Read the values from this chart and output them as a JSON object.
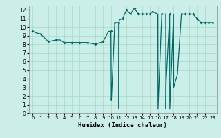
{
  "xlabel": "Humidex (Indice chaleur)",
  "bg_color": "#cceee8",
  "grid_color": "#aaddcc",
  "line_color": "#006868",
  "xlim": [
    -0.5,
    23.5
  ],
  "ylim": [
    0,
    12.5
  ],
  "xticks": [
    0,
    1,
    2,
    3,
    4,
    5,
    6,
    7,
    8,
    9,
    10,
    11,
    12,
    13,
    14,
    15,
    16,
    17,
    18,
    19,
    20,
    21,
    22,
    23
  ],
  "yticks": [
    0,
    1,
    2,
    3,
    4,
    5,
    6,
    7,
    8,
    9,
    10,
    11,
    12
  ],
  "x": [
    0,
    0.5,
    1,
    2,
    3,
    3.5,
    4,
    5,
    6,
    7,
    8,
    9,
    9.7,
    10.0,
    10.02,
    10.05,
    10.08,
    10.5,
    11.0,
    11.02,
    11.05,
    11.5,
    12.0,
    12.5,
    13.0,
    13.5,
    14.0,
    14.5,
    15.0,
    15.3,
    16.0,
    16.02,
    16.5,
    17.0,
    17.02,
    17.05,
    17.5,
    17.52,
    18.0,
    18.02,
    18.5,
    19.0,
    19.5,
    20.0,
    20.5,
    21.0,
    21.5,
    22.0,
    22.5,
    23.0
  ],
  "y": [
    9.5,
    9.3,
    9.2,
    8.3,
    8.5,
    8.5,
    8.2,
    8.2,
    8.2,
    8.2,
    8.0,
    8.3,
    9.5,
    9.5,
    7.5,
    1.5,
    1.8,
    10.5,
    10.5,
    0.5,
    10.8,
    11.0,
    12.0,
    11.5,
    12.2,
    11.5,
    11.5,
    11.5,
    11.5,
    11.8,
    11.5,
    0.5,
    11.5,
    11.5,
    0.5,
    3.5,
    11.5,
    0.5,
    11.5,
    3.0,
    4.5,
    11.5,
    11.5,
    11.5,
    11.5,
    11.0,
    10.5,
    10.5,
    10.5,
    10.5
  ],
  "marker_x": [
    0,
    1,
    2,
    3,
    4,
    5,
    6,
    7,
    8,
    9,
    10.0,
    10.5,
    11.0,
    11.5,
    12.0,
    12.5,
    13.0,
    13.5,
    14.0,
    14.5,
    15.0,
    15.3,
    16.5,
    17.5,
    19.0,
    19.5,
    20.0,
    20.5,
    21.0,
    21.5,
    22.0,
    22.5,
    23.0
  ],
  "marker_y": [
    9.5,
    9.2,
    8.3,
    8.5,
    8.2,
    8.2,
    8.2,
    8.2,
    8.0,
    8.3,
    9.5,
    10.5,
    10.5,
    11.0,
    12.0,
    11.5,
    12.2,
    11.5,
    11.5,
    11.5,
    11.5,
    11.8,
    11.5,
    11.5,
    11.5,
    11.5,
    11.5,
    11.5,
    11.0,
    10.5,
    10.5,
    10.5,
    10.5
  ]
}
